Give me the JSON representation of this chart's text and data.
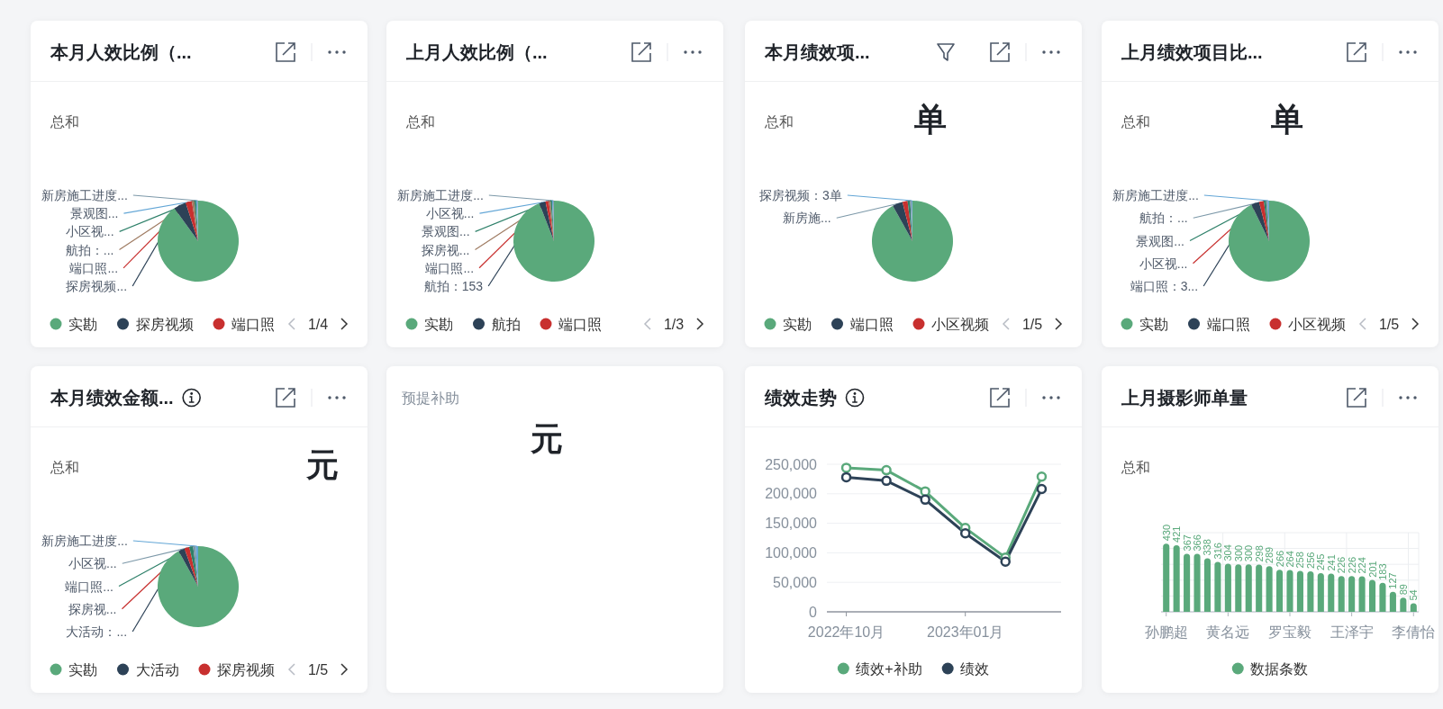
{
  "chart_data": [
    {
      "type": "pie",
      "title": "本月人效比例（...",
      "subtitle": "总和",
      "categories": [
        "实勘",
        "探房视频",
        "端口照",
        null,
        null,
        null,
        null
      ],
      "values": [
        90,
        5,
        2.5,
        1,
        0.7,
        0.5,
        0.3
      ],
      "colors": [
        "#5aa97b",
        "#2d4257",
        "#c8302f",
        "#9f7b62",
        "#2e8069",
        "#63a6d6",
        "#7d99a9"
      ],
      "value_labels": [
        null,
        "探房视频...",
        "端口照...",
        "航拍：...",
        "小区视...",
        "景观图...",
        "新房施工进度..."
      ],
      "legend": "bottom",
      "annotations": [
        "1/4"
      ]
    },
    {
      "type": "pie",
      "title": "上月人效比例（...",
      "subtitle": "总和",
      "categories": [
        "实勘",
        "航拍",
        "端口照",
        null,
        null,
        null,
        null
      ],
      "values": [
        5690,
        153,
        80,
        45,
        35,
        25,
        20
      ],
      "colors": [
        "#5aa97b",
        "#2d4257",
        "#c8302f",
        "#9f7b62",
        "#2e8069",
        "#63a6d6",
        "#7d99a9"
      ],
      "value_labels": [
        null,
        "航拍：153",
        "端口照...",
        "探房视...",
        "景观图...",
        "小区视...",
        "新房施工进度..."
      ],
      "legend": "bottom",
      "annotations": [
        "1/3"
      ]
    },
    {
      "type": "pie",
      "title": "本月绩效项...",
      "subtitle": "总和 单",
      "categories": [
        "实勘",
        "端口照",
        "小区视频",
        null,
        null,
        null
      ],
      "values": [
        900,
        40,
        20,
        10,
        6,
        3
      ],
      "colors": [
        "#5aa97b",
        "#2d4257",
        "#c8302f",
        "#2e8069",
        "#7d99a9",
        "#63a6d6"
      ],
      "value_labels": [
        null,
        null,
        null,
        null,
        "新房施...",
        "探房视频：3单"
      ],
      "legend": "bottom",
      "annotations": [
        "1/5"
      ]
    },
    {
      "type": "pie",
      "title": "上月绩效项目比...",
      "subtitle": "总和 单",
      "categories": [
        "实勘",
        "端口照",
        "小区视频",
        null,
        null,
        null
      ],
      "values": [
        92.8,
        3.2,
        1.9,
        0.9,
        0.7,
        0.5
      ],
      "colors": [
        "#5aa97b",
        "#2d4257",
        "#c8302f",
        "#2e8069",
        "#7d99a9",
        "#63a6d6"
      ],
      "value_labels": [
        null,
        "端口照：3...",
        "小区视...",
        "景观图...",
        "航拍：...",
        "新房施工进度..."
      ],
      "legend": "bottom",
      "annotations": [
        "1/5"
      ]
    },
    {
      "type": "pie",
      "title": "本月绩效金额...",
      "subtitle": "总和 元",
      "categories": [
        "实勘",
        "大活动",
        "探房视频",
        null,
        null,
        null
      ],
      "values": [
        92,
        2.5,
        2,
        1.5,
        1,
        1
      ],
      "colors": [
        "#5aa97b",
        "#2d4257",
        "#c8302f",
        "#2e8069",
        "#7d99a9",
        "#63a6d6"
      ],
      "value_labels": [
        null,
        "大活动：...",
        "探房视...",
        "端口照...",
        "小区视...",
        "新房施工进度..."
      ],
      "legend": "bottom",
      "annotations": [
        "1/5"
      ]
    },
    {
      "type": "other",
      "title": "预提补助",
      "subtitle": "元"
    },
    {
      "type": "line",
      "title": "绩效走势",
      "x": [
        "2022-10",
        "2022-11",
        "2022-12",
        "2023-01",
        "2023-02",
        "2023-03"
      ],
      "series": [
        {
          "name": "绩效+补助",
          "color": "#5aa97b",
          "values": [
            244000,
            240000,
            204000,
            142000,
            92000,
            229000
          ]
        },
        {
          "name": "绩效",
          "color": "#2d4257",
          "values": [
            228000,
            222000,
            190000,
            133000,
            85000,
            208000
          ]
        }
      ],
      "xlim": [
        "2022-09-16",
        "2023-03-16"
      ],
      "xticks": [
        {
          "value": "2022-10",
          "label": "2022年10月"
        },
        {
          "value": "2023-01",
          "label": "2023年01月"
        }
      ],
      "ylim": [
        0,
        250000
      ],
      "yticks": [
        0,
        {
          "value": 50000,
          "label": "50,000"
        },
        {
          "value": 100000,
          "label": "100,000"
        },
        {
          "value": 150000,
          "label": "150,000"
        },
        {
          "value": 200000,
          "label": "200,000"
        },
        {
          "value": 250000,
          "label": "250,000"
        }
      ],
      "grid": "y",
      "legend": "bottom",
      "marker": "circle"
    },
    {
      "type": "bar",
      "title": "上月摄影师单量",
      "subtitle": "总和",
      "categories": [
        "孙鹏超",
        null,
        null,
        null,
        null,
        null,
        "黄名远",
        null,
        null,
        null,
        null,
        null,
        "罗宝毅",
        null,
        null,
        null,
        null,
        null,
        "王泽宇",
        null,
        null,
        null,
        null,
        null,
        "李倩怡"
      ],
      "series": [
        {
          "name": "数据条数",
          "color": "#5aa97b",
          "values": [
            430,
            421,
            367,
            366,
            338,
            316,
            304,
            300,
            300,
            298,
            289,
            266,
            264,
            258,
            256,
            245,
            241,
            226,
            226,
            224,
            201,
            183,
            127,
            89,
            54
          ]
        }
      ],
      "ylim": [
        0,
        500
      ],
      "yticks": [
        {
          "value": 0,
          "label": null
        },
        {
          "value": 100,
          "label": null
        },
        {
          "value": 200,
          "label": null
        },
        {
          "value": 300,
          "label": null
        },
        {
          "value": 400,
          "label": null
        },
        {
          "value": 500,
          "label": null
        }
      ],
      "tick_labels": "x",
      "grid": true,
      "data_labels": true,
      "legend": "bottom"
    }
  ]
}
